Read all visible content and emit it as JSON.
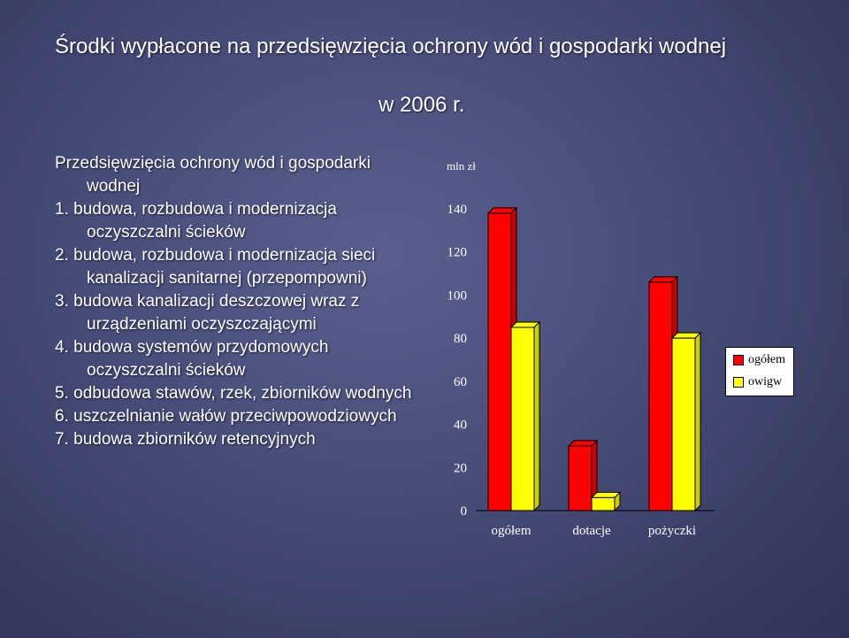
{
  "title": "Środki wypłacone na przedsięwzięcia ochrony wód i gospodarki wodnej",
  "title_year": "w 2006 r.",
  "list": {
    "heading": "Przedsięwzięcia ochrony wód i gospodarki wodnej",
    "items": [
      "1. budowa, rozbudowa i modernizacja oczyszczalni ścieków",
      "2. budowa, rozbudowa i modernizacja sieci kanalizacji sanitarnej (przepompowni)",
      "3. budowa kanalizacji deszczowej wraz z urządzeniami oczyszczającymi",
      "4. budowa systemów przydomowych oczyszczalni ścieków",
      "5. odbudowa stawów, rzek, zbiorników wodnych",
      "6. uszczelnianie wałów przeciwpowodziowych",
      "7. budowa zbiorników retencyjnych"
    ]
  },
  "chart_data": {
    "type": "bar",
    "ylabel": "mln zł",
    "categories": [
      "ogółem",
      "dotacje",
      "pożyczki"
    ],
    "series": [
      {
        "name": "ogółem",
        "color": "#ff0000",
        "values": [
          138,
          30,
          106
        ]
      },
      {
        "name": "owigw",
        "color": "#ffff00",
        "values": [
          85,
          6,
          80
        ]
      }
    ],
    "ylim": [
      0,
      140
    ],
    "yticks": [
      0,
      20,
      40,
      60,
      80,
      100,
      120,
      140
    ],
    "grid": false,
    "legend_position": "right"
  }
}
